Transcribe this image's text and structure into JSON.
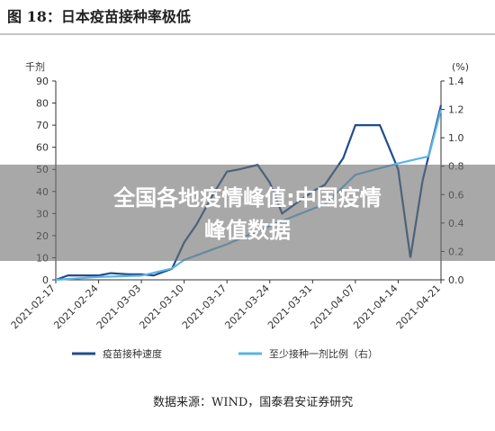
{
  "chart_data": {
    "type": "line",
    "title": "图 18：日本疫苗接种率极低",
    "y_label": "千剂",
    "y2_label": "(%)",
    "source": "数据来源：WIND，国泰君安证券研究",
    "overlay": [
      "全国各地疫情峰值:中国疫情",
      "峰值数据"
    ],
    "xlim": [
      "2021-02-17",
      "2021-04-21"
    ],
    "xticks": [
      "2021-02-17",
      "2021-02-24",
      "2021-03-03",
      "2021-03-10",
      "2021-03-17",
      "2021-03-24",
      "2021-03-31",
      "2021-04-07",
      "2021-04-14",
      "2021-04-21"
    ],
    "ylim": [
      0,
      90
    ],
    "yticks": [
      0,
      10,
      20,
      30,
      40,
      50,
      60,
      70,
      80,
      90
    ],
    "y2lim": [
      0,
      1.4
    ],
    "y2ticks": [
      {
        "value": 0,
        "label": "0.0"
      },
      0.2,
      0.4,
      0.6,
      0.8,
      {
        "value": 1,
        "label": "1.0"
      },
      1.2,
      1.4
    ],
    "series": [
      {
        "name": "疫苗接种速度",
        "color": "#1f4e8c",
        "x": [
          "2021-02-17",
          "2021-02-19",
          "2021-02-21",
          "2021-02-24",
          "2021-02-26",
          "2021-03-01",
          "2021-03-03",
          "2021-03-05",
          "2021-03-08",
          "2021-03-10",
          "2021-03-12",
          "2021-03-15",
          "2021-03-17",
          "2021-03-19",
          "2021-03-22",
          "2021-03-24",
          "2021-03-26",
          "2021-03-29",
          "2021-03-31",
          "2021-04-02",
          "2021-04-05",
          "2021-04-07",
          "2021-04-09",
          "2021-04-11",
          "2021-04-14",
          "2021-04-16",
          "2021-04-18",
          "2021-04-21"
        ],
        "values": [
          0,
          2,
          2,
          2,
          3,
          2.5,
          2.5,
          2,
          5,
          17,
          25,
          40,
          49,
          50,
          52,
          44,
          30,
          36,
          40,
          43,
          55,
          70,
          70,
          70,
          50,
          10,
          45,
          79
        ]
      },
      {
        "name": "至少接种一剂比例（右）",
        "color": "#5bb4e5",
        "axis": "y2",
        "x": [
          "2021-02-17",
          "2021-02-24",
          "2021-03-03",
          "2021-03-08",
          "2021-03-10",
          "2021-03-15",
          "2021-03-17",
          "2021-03-24",
          "2021-03-31",
          "2021-04-02",
          "2021-04-07",
          "2021-04-14",
          "2021-04-19",
          "2021-04-21"
        ],
        "values": [
          0,
          0.02,
          0.03,
          0.08,
          0.14,
          0.22,
          0.25,
          0.38,
          0.5,
          0.53,
          0.74,
          0.82,
          0.87,
          1.2
        ]
      }
    ]
  }
}
